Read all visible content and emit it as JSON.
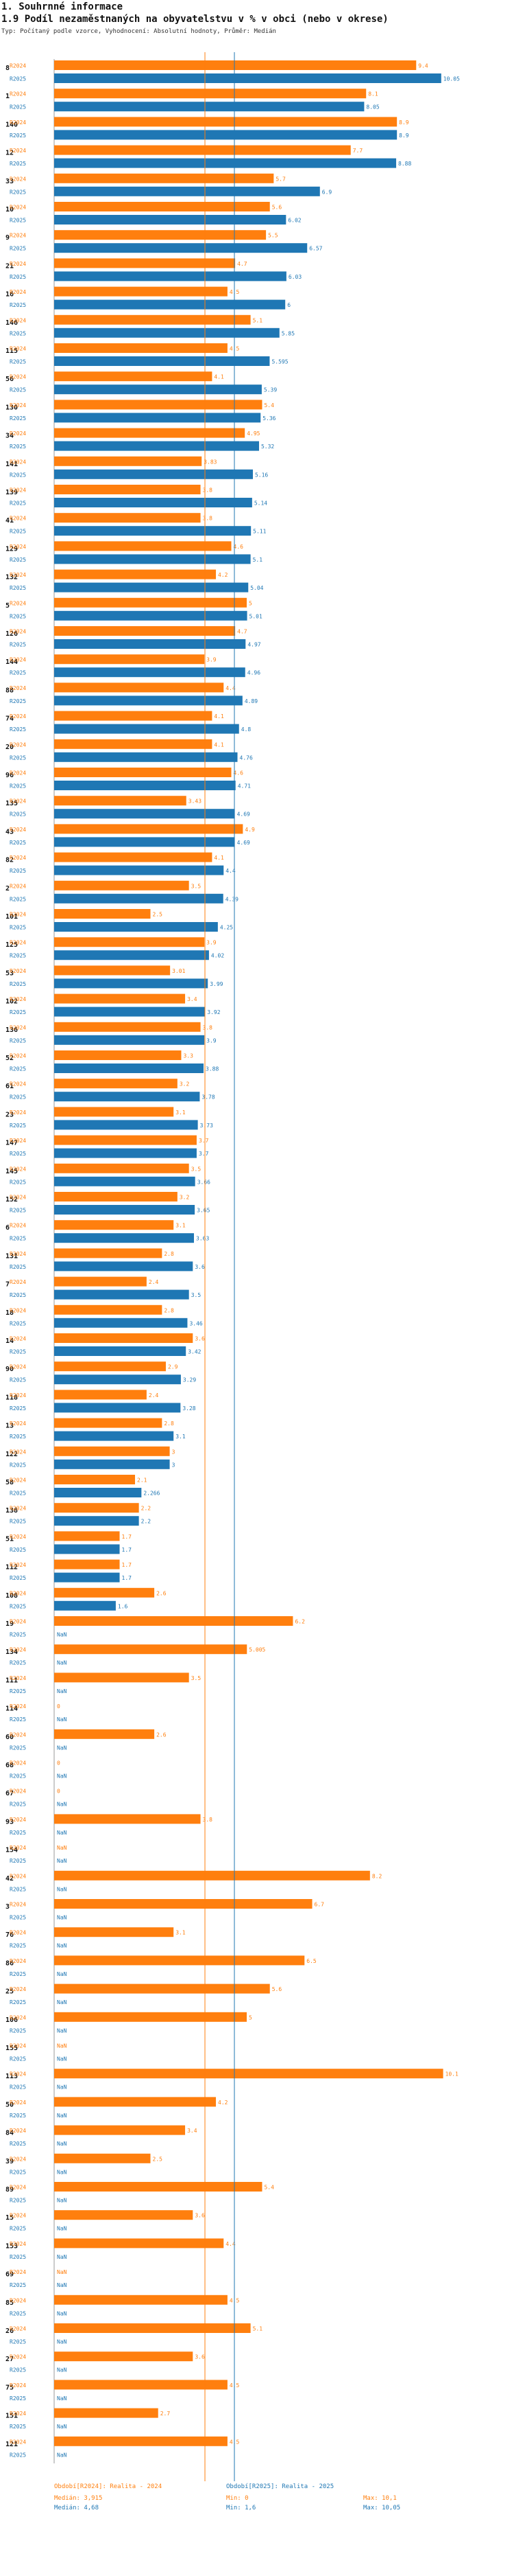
{
  "header": {
    "section": "1. Souhrnné informace",
    "title": "1.9 Podíl nezaměstnaných na obyvatelstvu v % v obci (nebo v okrese)",
    "subtitle": "Typ: Počítaný podle vzorce, Vyhodnocení: Absolutní hodnoty, Průměr: Medián"
  },
  "colors": {
    "r2024": "#ff7f0e",
    "r2025": "#1f77b4"
  },
  "series_labels": {
    "r2024": "R2024",
    "r2025": "R2025",
    "nan": "NaN"
  },
  "chart_data": {
    "type": "bar",
    "orientation": "horizontal",
    "xlim": [
      0,
      11
    ],
    "series_names": [
      "R2024",
      "R2025"
    ],
    "categories": [
      {
        "id": "8",
        "r2024": "9.4",
        "r2025": "10.05"
      },
      {
        "id": "1",
        "r2024": "8.1",
        "r2025": "8.05"
      },
      {
        "id": "140",
        "r2024": "8.9",
        "r2025": "8.9"
      },
      {
        "id": "12",
        "r2024": "7.7",
        "r2025": "8.88"
      },
      {
        "id": "33",
        "r2024": "5.7",
        "r2025": "6.9"
      },
      {
        "id": "10",
        "r2024": "5.6",
        "r2025": "6.02"
      },
      {
        "id": "9",
        "r2024": "5.5",
        "r2025": "6.57"
      },
      {
        "id": "21",
        "r2024": "4.7",
        "r2025": "6.03"
      },
      {
        "id": "16",
        "r2024": "4.5",
        "r2025": "6"
      },
      {
        "id": "146",
        "r2024": "5.1",
        "r2025": "5.85"
      },
      {
        "id": "115",
        "r2024": "4.5",
        "r2025": "5.595"
      },
      {
        "id": "56",
        "r2024": "4.1",
        "r2025": "5.39"
      },
      {
        "id": "130",
        "r2024": "5.4",
        "r2025": "5.36"
      },
      {
        "id": "34",
        "r2024": "4.95",
        "r2025": "5.32"
      },
      {
        "id": "141",
        "r2024": "3.83",
        "r2025": "5.16"
      },
      {
        "id": "139",
        "r2024": "3.8",
        "r2025": "5.14"
      },
      {
        "id": "41",
        "r2024": "3.8",
        "r2025": "5.11"
      },
      {
        "id": "129",
        "r2024": "4.6",
        "r2025": "5.1"
      },
      {
        "id": "132",
        "r2024": "4.2",
        "r2025": "5.04"
      },
      {
        "id": "5",
        "r2024": "5",
        "r2025": "5.01"
      },
      {
        "id": "126",
        "r2024": "4.7",
        "r2025": "4.97"
      },
      {
        "id": "144",
        "r2024": "3.9",
        "r2025": "4.96"
      },
      {
        "id": "88",
        "r2024": "4.4",
        "r2025": "4.89"
      },
      {
        "id": "74",
        "r2024": "4.1",
        "r2025": "4.8"
      },
      {
        "id": "20",
        "r2024": "4.1",
        "r2025": "4.76"
      },
      {
        "id": "96",
        "r2024": "4.6",
        "r2025": "4.71"
      },
      {
        "id": "135",
        "r2024": "3.43",
        "r2025": "4.69"
      },
      {
        "id": "43",
        "r2024": "4.9",
        "r2025": "4.69"
      },
      {
        "id": "82",
        "r2024": "4.1",
        "r2025": "4.4"
      },
      {
        "id": "2",
        "r2024": "3.5",
        "r2025": "4.39"
      },
      {
        "id": "101",
        "r2024": "2.5",
        "r2025": "4.25"
      },
      {
        "id": "125",
        "r2024": "3.9",
        "r2025": "4.02"
      },
      {
        "id": "53",
        "r2024": "3.01",
        "r2025": "3.99"
      },
      {
        "id": "102",
        "r2024": "3.4",
        "r2025": "3.92"
      },
      {
        "id": "136",
        "r2024": "3.8",
        "r2025": "3.9"
      },
      {
        "id": "52",
        "r2024": "3.3",
        "r2025": "3.88"
      },
      {
        "id": "61",
        "r2024": "3.2",
        "r2025": "3.78"
      },
      {
        "id": "23",
        "r2024": "3.1",
        "r2025": "3.73"
      },
      {
        "id": "147",
        "r2024": "3.7",
        "r2025": "3.7"
      },
      {
        "id": "145",
        "r2024": "3.5",
        "r2025": "3.66"
      },
      {
        "id": "152",
        "r2024": "3.2",
        "r2025": "3.65"
      },
      {
        "id": "6",
        "r2024": "3.1",
        "r2025": "3.63"
      },
      {
        "id": "131",
        "r2024": "2.8",
        "r2025": "3.6"
      },
      {
        "id": "7",
        "r2024": "2.4",
        "r2025": "3.5"
      },
      {
        "id": "18",
        "r2024": "2.8",
        "r2025": "3.46"
      },
      {
        "id": "14",
        "r2024": "3.6",
        "r2025": "3.42"
      },
      {
        "id": "90",
        "r2024": "2.9",
        "r2025": "3.29"
      },
      {
        "id": "118",
        "r2024": "2.4",
        "r2025": "3.28"
      },
      {
        "id": "13",
        "r2024": "2.8",
        "r2025": "3.1"
      },
      {
        "id": "122",
        "r2024": "3",
        "r2025": "3"
      },
      {
        "id": "58",
        "r2024": "2.1",
        "r2025": "2.266"
      },
      {
        "id": "138",
        "r2024": "2.2",
        "r2025": "2.2"
      },
      {
        "id": "51",
        "r2024": "1.7",
        "r2025": "1.7"
      },
      {
        "id": "112",
        "r2024": "1.7",
        "r2025": "1.7"
      },
      {
        "id": "108",
        "r2024": "2.6",
        "r2025": "1.6"
      },
      {
        "id": "19",
        "r2024": "6.2",
        "r2025": null
      },
      {
        "id": "134",
        "r2024": "5.005",
        "r2025": null
      },
      {
        "id": "111",
        "r2024": "3.5",
        "r2025": null
      },
      {
        "id": "114",
        "r2024": "0",
        "r2025": null
      },
      {
        "id": "60",
        "r2024": "2.6",
        "r2025": null
      },
      {
        "id": "68",
        "r2024": "0",
        "r2025": null
      },
      {
        "id": "67",
        "r2024": "0",
        "r2025": null
      },
      {
        "id": "93",
        "r2024": "3.8",
        "r2025": null
      },
      {
        "id": "154",
        "r2024": "NaN",
        "r2025": null
      },
      {
        "id": "42",
        "r2024": "8.2",
        "r2025": null
      },
      {
        "id": "3",
        "r2024": "6.7",
        "r2025": null
      },
      {
        "id": "76",
        "r2024": "3.1",
        "r2025": null
      },
      {
        "id": "86",
        "r2024": "6.5",
        "r2025": null
      },
      {
        "id": "25",
        "r2024": "5.6",
        "r2025": null
      },
      {
        "id": "106",
        "r2024": "5",
        "r2025": null
      },
      {
        "id": "155",
        "r2024": "NaN",
        "r2025": null
      },
      {
        "id": "113",
        "r2024": "10.1",
        "r2025": null
      },
      {
        "id": "50",
        "r2024": "4.2",
        "r2025": null
      },
      {
        "id": "84",
        "r2024": "3.4",
        "r2025": null
      },
      {
        "id": "39",
        "r2024": "2.5",
        "r2025": null
      },
      {
        "id": "89",
        "r2024": "5.4",
        "r2025": null
      },
      {
        "id": "15",
        "r2024": "3.6",
        "r2025": null
      },
      {
        "id": "153",
        "r2024": "4.4",
        "r2025": null
      },
      {
        "id": "69",
        "r2024": "NaN",
        "r2025": null
      },
      {
        "id": "85",
        "r2024": "4.5",
        "r2025": null
      },
      {
        "id": "26",
        "r2024": "5.1",
        "r2025": null
      },
      {
        "id": "27",
        "r2024": "3.6",
        "r2025": null
      },
      {
        "id": "75",
        "r2024": "4.5",
        "r2025": null
      },
      {
        "id": "151",
        "r2024": "2.7",
        "r2025": null
      },
      {
        "id": "121",
        "r2024": "4.5",
        "r2025": null
      }
    ],
    "median_lines": [
      {
        "series": "R2024",
        "value": 3.915
      },
      {
        "series": "R2025",
        "value": 4.68
      }
    ]
  },
  "legend": {
    "r2024": {
      "name": "Období[R2024]: Realita - 2024",
      "median": "Medián: 3,915",
      "min": "Min: 0",
      "max": "Max: 10,1"
    },
    "r2025": {
      "name": "Období[R2025]: Realita - 2025",
      "median": "Medián: 4,68",
      "min": "Min: 1,6",
      "max": "Max: 10,05"
    }
  }
}
